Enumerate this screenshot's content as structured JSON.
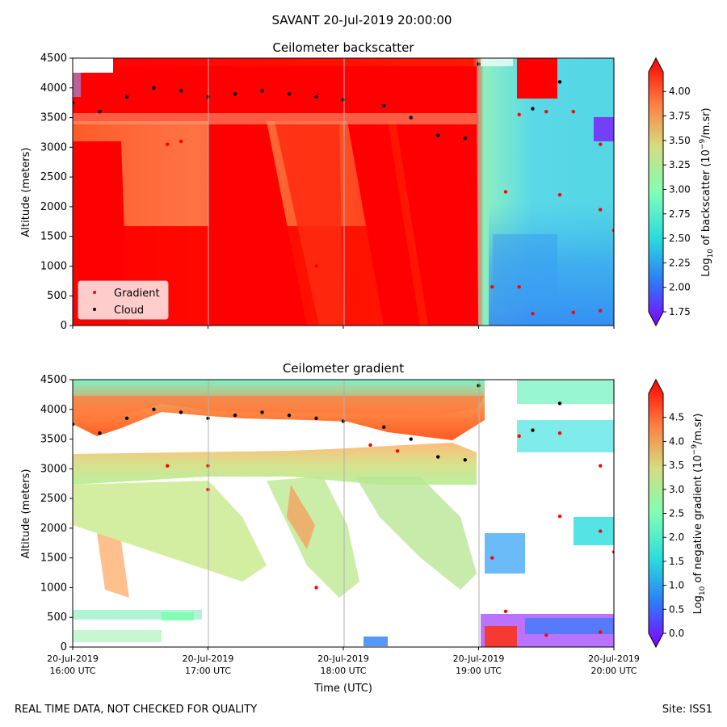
{
  "figure": {
    "title": "SAVANT 20-Jul-2019 20:00:00",
    "footer_left": "REAL TIME DATA, NOT CHECKED FOR QUALITY",
    "footer_right": "Site: ISS1"
  },
  "chart_data": [
    {
      "type": "heatmap",
      "title": "Ceilometer backscatter",
      "ylabel": "Altitude (meters)",
      "xlabel": "",
      "ylim": [
        0,
        4500
      ],
      "xlim_hours_utc": [
        16,
        20
      ],
      "y_ticks": [
        0,
        500,
        1000,
        1500,
        2000,
        2500,
        3000,
        3500,
        4000,
        4500
      ],
      "x_ticks": [
        {
          "date": "20-Jul-2019",
          "time": "16:00 UTC"
        },
        {
          "date": "20-Jul-2019",
          "time": "17:00 UTC"
        },
        {
          "date": "20-Jul-2019",
          "time": "18:00 UTC"
        },
        {
          "date": "20-Jul-2019",
          "time": "19:00 UTC"
        },
        {
          "date": "20-Jul-2019",
          "time": "20:00 UTC"
        }
      ],
      "show_x_tick_labels": false,
      "colorbar": {
        "label": "Log10 of backscatter (10^-9/m.sr)",
        "label_main": "Log",
        "label_sub": "10",
        "label_rest": " of backscatter (10",
        "label_sup": "−9",
        "label_end": "/m.sr)",
        "range": [
          1.75,
          4.2
        ],
        "ticks": [
          "1.75",
          "2.00",
          "2.25",
          "2.50",
          "2.75",
          "3.00",
          "3.25",
          "3.50",
          "3.75",
          "4.00"
        ],
        "extend": "both",
        "colormap": "rainbow"
      },
      "legend": {
        "placement": "lower-left",
        "entries": [
          {
            "label": "Gradient",
            "color": "#ff0000"
          },
          {
            "label": "Cloud",
            "color": "#000000"
          }
        ]
      },
      "series": [
        {
          "name": "Cloud",
          "color": "#000000",
          "points": [
            [
              16.0,
              3750
            ],
            [
              16.2,
              3600
            ],
            [
              16.4,
              3850
            ],
            [
              16.6,
              4000
            ],
            [
              16.8,
              3950
            ],
            [
              17.0,
              3850
            ],
            [
              17.2,
              3900
            ],
            [
              17.4,
              3950
            ],
            [
              17.6,
              3900
            ],
            [
              17.8,
              3850
            ],
            [
              18.0,
              3800
            ],
            [
              18.3,
              3700
            ],
            [
              18.5,
              3500
            ],
            [
              18.7,
              3200
            ],
            [
              18.9,
              3150
            ],
            [
              19.0,
              4400
            ],
            [
              19.4,
              3650
            ],
            [
              19.6,
              4100
            ]
          ]
        },
        {
          "name": "Gradient",
          "color": "#ff0000",
          "points": [
            [
              16.7,
              3050
            ],
            [
              16.8,
              3100
            ],
            [
              17.8,
              1000
            ],
            [
              19.3,
              3550
            ],
            [
              19.5,
              3600
            ],
            [
              19.7,
              3600
            ],
            [
              19.9,
              3050
            ],
            [
              19.9,
              1950
            ],
            [
              20.0,
              1600
            ],
            [
              19.2,
              2250
            ],
            [
              19.6,
              2200
            ],
            [
              19.1,
              650
            ],
            [
              19.3,
              650
            ],
            [
              19.4,
              200
            ],
            [
              19.7,
              220
            ],
            [
              19.9,
              250
            ]
          ]
        }
      ]
    },
    {
      "type": "heatmap",
      "title": "Ceilometer gradient",
      "ylabel": "Altitude (meters)",
      "xlabel": "Time (UTC)",
      "ylim": [
        0,
        4500
      ],
      "xlim_hours_utc": [
        16,
        20
      ],
      "y_ticks": [
        0,
        500,
        1000,
        1500,
        2000,
        2500,
        3000,
        3500,
        4000,
        4500
      ],
      "x_ticks": [
        {
          "date": "20-Jul-2019",
          "time": "16:00 UTC"
        },
        {
          "date": "20-Jul-2019",
          "time": "17:00 UTC"
        },
        {
          "date": "20-Jul-2019",
          "time": "18:00 UTC"
        },
        {
          "date": "20-Jul-2019",
          "time": "19:00 UTC"
        },
        {
          "date": "20-Jul-2019",
          "time": "20:00 UTC"
        }
      ],
      "show_x_tick_labels": true,
      "colorbar": {
        "label": "Log10 of negative gradient (10^-9/m.sr)",
        "label_main": "Log",
        "label_sub": "10",
        "label_rest": " of negative gradient (10",
        "label_sup": "−9",
        "label_end": "/m.sr)",
        "range": [
          0.0,
          5.0
        ],
        "ticks": [
          "0.0",
          "0.5",
          "1.0",
          "1.5",
          "2.0",
          "2.5",
          "3.0",
          "3.5",
          "4.0",
          "4.5"
        ],
        "extend": "both",
        "colormap": "rainbow"
      },
      "series": [
        {
          "name": "Cloud",
          "color": "#000000",
          "points": [
            [
              16.0,
              3750
            ],
            [
              16.2,
              3600
            ],
            [
              16.4,
              3850
            ],
            [
              16.6,
              4000
            ],
            [
              16.8,
              3950
            ],
            [
              17.0,
              3850
            ],
            [
              17.2,
              3900
            ],
            [
              17.4,
              3950
            ],
            [
              17.6,
              3900
            ],
            [
              17.8,
              3850
            ],
            [
              18.0,
              3800
            ],
            [
              18.3,
              3700
            ],
            [
              18.5,
              3500
            ],
            [
              18.7,
              3200
            ],
            [
              18.9,
              3150
            ],
            [
              19.0,
              4400
            ],
            [
              19.4,
              3650
            ],
            [
              19.6,
              4100
            ]
          ]
        },
        {
          "name": "Gradient",
          "color": "#ff0000",
          "points": [
            [
              16.7,
              3050
            ],
            [
              17.0,
              3050
            ],
            [
              17.0,
              2650
            ],
            [
              17.8,
              1000
            ],
            [
              18.2,
              3400
            ],
            [
              18.4,
              3300
            ],
            [
              19.3,
              3550
            ],
            [
              19.6,
              3600
            ],
            [
              19.9,
              3050
            ],
            [
              19.9,
              1950
            ],
            [
              20.0,
              1600
            ],
            [
              19.6,
              2200
            ],
            [
              19.1,
              1500
            ],
            [
              19.2,
              600
            ],
            [
              19.5,
              200
            ],
            [
              19.9,
              250
            ]
          ]
        }
      ]
    }
  ]
}
